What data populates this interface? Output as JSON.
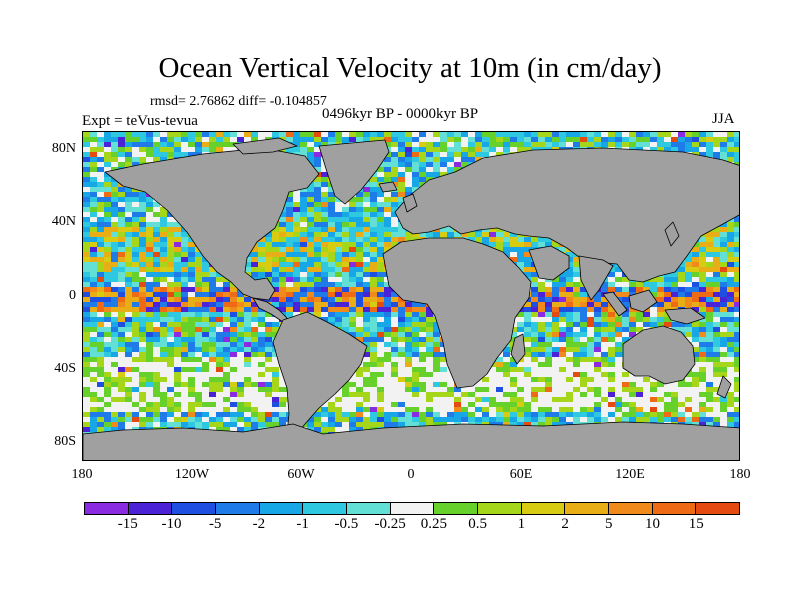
{
  "title": "Ocean Vertical Velocity at 10m (in cm/day)",
  "stats": "rmsd= 2.76862 diff= -0.104857",
  "period": "0496kyr BP - 0000kyr BP",
  "experiment": "Expt = teVus-tevua",
  "season": "JJA",
  "lat_ticks": [
    "80N",
    "40N",
    "0",
    "40S",
    "80S"
  ],
  "lon_ticks": [
    "180",
    "120W",
    "60W",
    "0",
    "60E",
    "120E",
    "180"
  ],
  "colorbar": {
    "labels": [
      "-15",
      "-10",
      "-5",
      "-2",
      "-1",
      "-0.5",
      "-0.25",
      "0.25",
      "0.5",
      "1",
      "2",
      "5",
      "10",
      "15"
    ],
    "colors": [
      "#8a2be2",
      "#4b22d6",
      "#1f4fe0",
      "#1e7be8",
      "#18a7e6",
      "#2ec8e0",
      "#63e0d6",
      "#f2f2f2",
      "#66d12a",
      "#a6d61a",
      "#d8cc12",
      "#e9ad16",
      "#f08a1a",
      "#ef6a14",
      "#e54a10"
    ]
  },
  "map": {
    "land_color": "#a0a0a0",
    "ocean_base_color": "#c9ecf2"
  }
}
